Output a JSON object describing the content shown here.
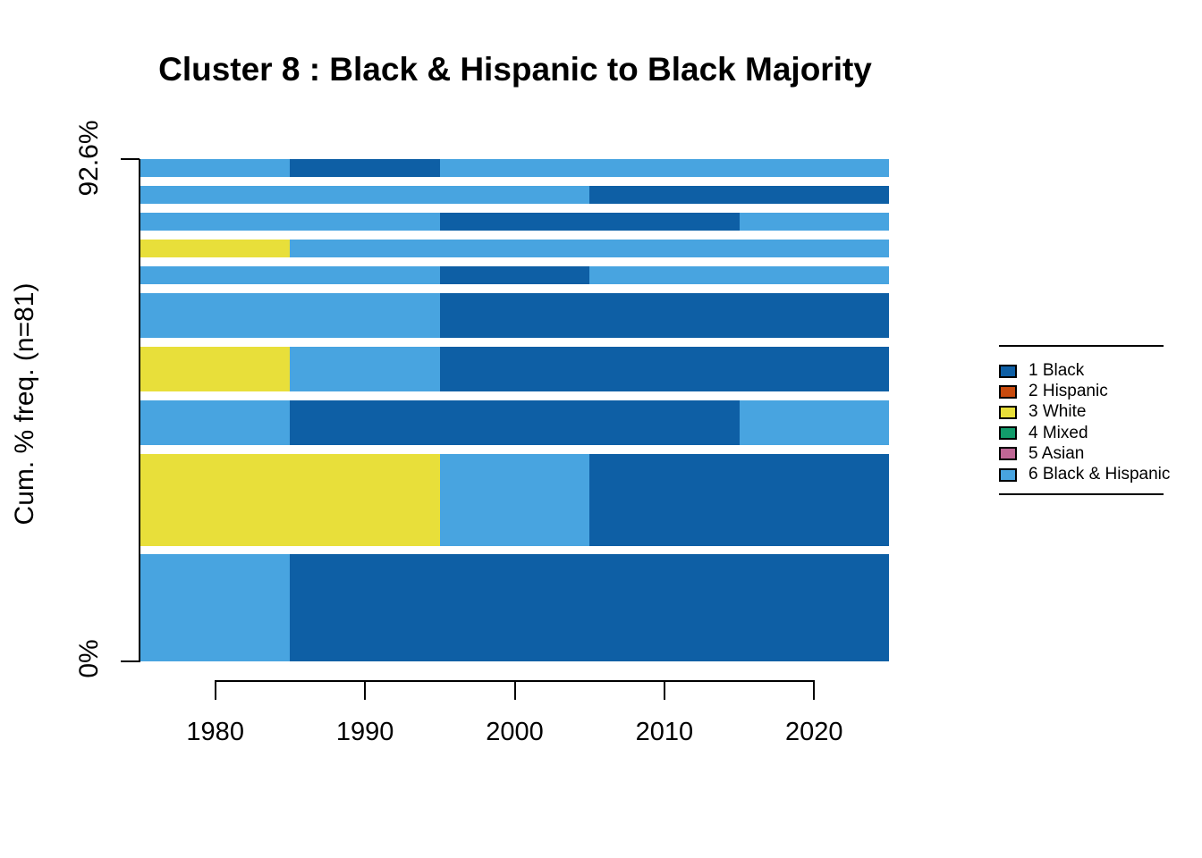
{
  "title": "Cluster 8 : Black & Hispanic to Black Majority",
  "y_axis": {
    "label": "Cum. % freq. (n=81)",
    "top_tick": "92.6%",
    "bottom_tick": "0%"
  },
  "x_axis": {
    "tick_labels": [
      "1980",
      "1990",
      "2000",
      "2010",
      "2020"
    ]
  },
  "legend": {
    "items": [
      {
        "label": "1 Black",
        "color": "#0E5FA5"
      },
      {
        "label": "2 Hispanic",
        "color": "#C84A0D"
      },
      {
        "label": "3 White",
        "color": "#E8DF3A"
      },
      {
        "label": "4 Mixed",
        "color": "#129C6B"
      },
      {
        "label": "5 Asian",
        "color": "#BF6795"
      },
      {
        "label": "6 Black & Hispanic",
        "color": "#48A4E0"
      }
    ]
  },
  "chart_data": {
    "type": "bar",
    "subtype": "sequence-frequency-plot-horizontal-stacked",
    "title": "Cluster 8 : Black & Hispanic to Black Majority",
    "xlabel": "",
    "ylabel": "Cum. % freq. (n=81)",
    "n": 81,
    "cumulative_pct_shown": 92.6,
    "x_range": [
      1975,
      2025
    ],
    "x_ticks": [
      1980,
      1990,
      2000,
      2010,
      2020
    ],
    "y_ticks_pct": [
      0,
      92.6
    ],
    "legend_position": "right",
    "grid": false,
    "states": [
      {
        "id": 1,
        "label": "1 Black",
        "color": "#0E5FA5"
      },
      {
        "id": 2,
        "label": "2 Hispanic",
        "color": "#C84A0D"
      },
      {
        "id": 3,
        "label": "3 White",
        "color": "#E8DF3A"
      },
      {
        "id": 4,
        "label": "4 Mixed",
        "color": "#129C6B"
      },
      {
        "id": 5,
        "label": "5 Asian",
        "color": "#BF6795"
      },
      {
        "id": 6,
        "label": "6 Black & Hispanic",
        "color": "#48A4E0"
      }
    ],
    "sequences_bottom_to_top": [
      {
        "freq_count": 16,
        "freq_pct": 19.75,
        "segments": [
          {
            "state": 6,
            "from": 1975,
            "to": 1985
          },
          {
            "state": 1,
            "from": 1985,
            "to": 2025
          }
        ]
      },
      {
        "freq_count": 15,
        "freq_pct": 18.52,
        "segments": [
          {
            "state": 3,
            "from": 1975,
            "to": 1995
          },
          {
            "state": 6,
            "from": 1995,
            "to": 2005
          },
          {
            "state": 1,
            "from": 2005,
            "to": 2025
          }
        ]
      },
      {
        "freq_count": 8,
        "freq_pct": 9.88,
        "segments": [
          {
            "state": 6,
            "from": 1975,
            "to": 1985
          },
          {
            "state": 1,
            "from": 1985,
            "to": 2015
          },
          {
            "state": 6,
            "from": 2015,
            "to": 2025
          }
        ]
      },
      {
        "freq_count": 8,
        "freq_pct": 9.88,
        "segments": [
          {
            "state": 3,
            "from": 1975,
            "to": 1985
          },
          {
            "state": 6,
            "from": 1985,
            "to": 1995
          },
          {
            "state": 1,
            "from": 1995,
            "to": 2025
          }
        ]
      },
      {
        "freq_count": 8,
        "freq_pct": 9.88,
        "segments": [
          {
            "state": 6,
            "from": 1975,
            "to": 1995
          },
          {
            "state": 1,
            "from": 1995,
            "to": 2025
          }
        ]
      },
      {
        "freq_count": 4,
        "freq_pct": 4.94,
        "segments": [
          {
            "state": 6,
            "from": 1975,
            "to": 1995
          },
          {
            "state": 1,
            "from": 1995,
            "to": 2005
          },
          {
            "state": 6,
            "from": 2005,
            "to": 2025
          }
        ]
      },
      {
        "freq_count": 4,
        "freq_pct": 4.94,
        "segments": [
          {
            "state": 3,
            "from": 1975,
            "to": 1985
          },
          {
            "state": 6,
            "from": 1985,
            "to": 2025
          }
        ]
      },
      {
        "freq_count": 4,
        "freq_pct": 4.94,
        "segments": [
          {
            "state": 6,
            "from": 1975,
            "to": 1995
          },
          {
            "state": 1,
            "from": 1995,
            "to": 2015
          },
          {
            "state": 6,
            "from": 2015,
            "to": 2025
          }
        ]
      },
      {
        "freq_count": 4,
        "freq_pct": 4.94,
        "segments": [
          {
            "state": 6,
            "from": 1975,
            "to": 2005
          },
          {
            "state": 1,
            "from": 2005,
            "to": 2025
          }
        ]
      },
      {
        "freq_count": 4,
        "freq_pct": 4.94,
        "segments": [
          {
            "state": 6,
            "from": 1975,
            "to": 1985
          },
          {
            "state": 1,
            "from": 1985,
            "to": 1995
          },
          {
            "state": 6,
            "from": 1995,
            "to": 2025
          }
        ]
      }
    ]
  }
}
